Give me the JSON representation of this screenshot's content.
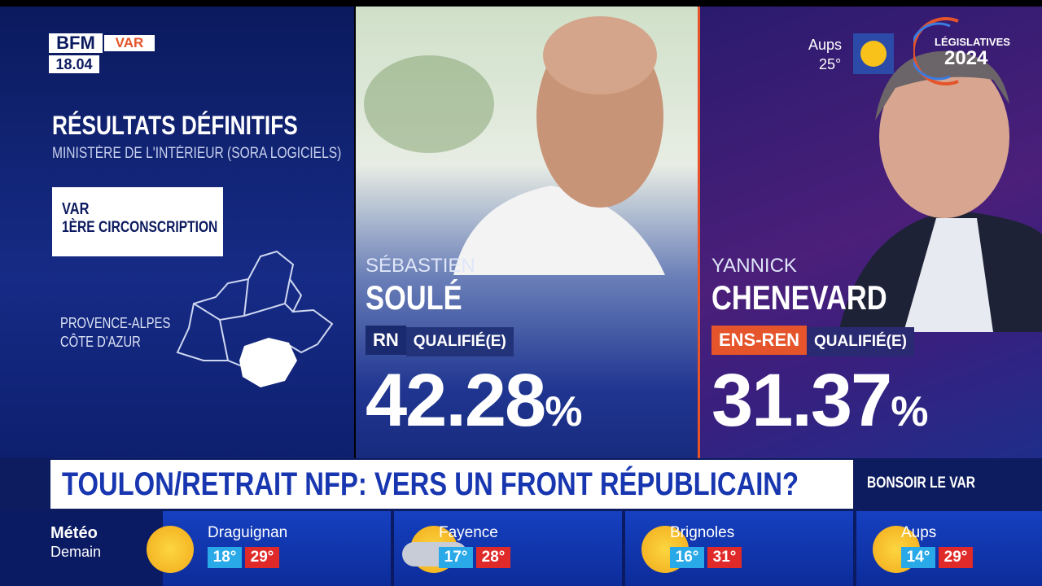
{
  "header": {
    "logo": "BFM",
    "channel": "VAR",
    "time": "18.04"
  },
  "weather_now": {
    "city": "Aups",
    "temp": "25°"
  },
  "badge": {
    "line1": "LÉGISLATIVES",
    "line2": "2024"
  },
  "results": {
    "title": "RÉSULTATS DÉFINITIFS",
    "source": "MINISTÈRE DE L'INTÉRIEUR (SORA LOGICIELS)",
    "district": [
      "VAR",
      "1ÈRE CIRCONSCRIPTION"
    ],
    "region": [
      "PROVENCE-ALPES",
      "CÔTE D'AZUR"
    ]
  },
  "candidates": [
    {
      "first_name": "SÉBASTIEN",
      "last_name": "SOULÉ",
      "party": "RN",
      "status": "QUALIFIÉ(E)",
      "percent": "42.28",
      "percent_sign": "%"
    },
    {
      "first_name": "YANNICK",
      "last_name": "CHENEVARD",
      "party": "ENS-REN",
      "status": "QUALIFIÉ(E)",
      "percent": "31.37",
      "percent_sign": "%"
    }
  ],
  "ticker": {
    "headline": "TOULON/RETRAIT NFP: VERS UN FRONT RÉPUBLICAIN?",
    "show": "BONSOIR LE VAR"
  },
  "forecast": {
    "label": "Météo",
    "sublabel": "Demain",
    "cities": [
      {
        "name": "Draguignan",
        "min": "18°",
        "max": "29°"
      },
      {
        "name": "Fayence",
        "min": "17°",
        "max": "28°"
      },
      {
        "name": "Brignoles",
        "min": "16°",
        "max": "31°"
      },
      {
        "name": "Aups",
        "min": "14°",
        "max": "29°"
      }
    ]
  }
}
